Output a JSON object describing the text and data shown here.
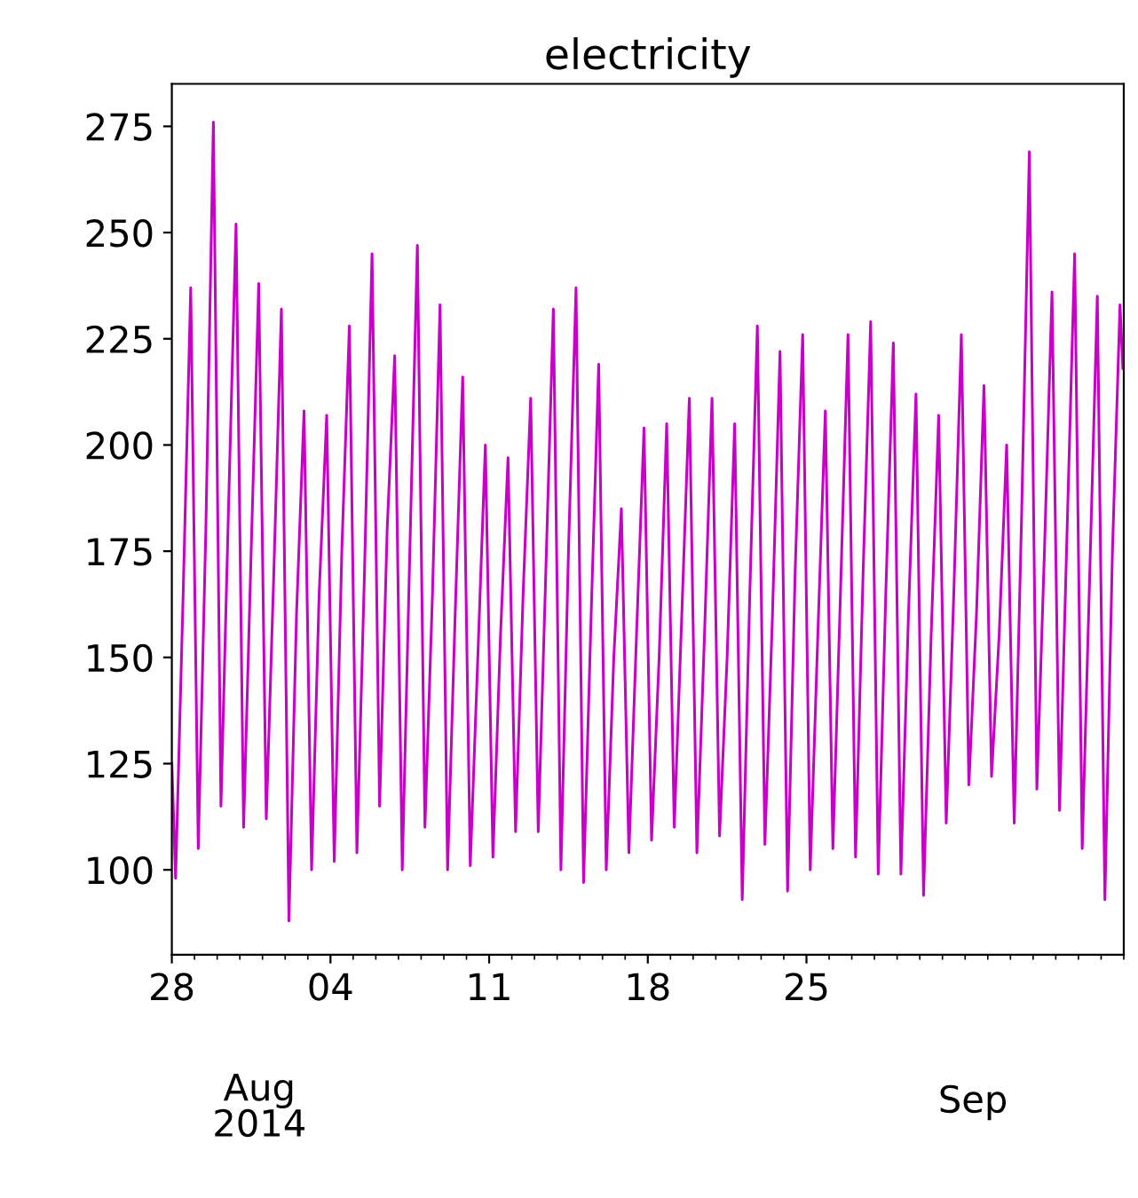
{
  "chart_data": {
    "type": "line",
    "title": "electricity",
    "x": [
      "2014-07-28T00:00",
      "2014-07-28T04:00",
      "2014-07-28T12:00",
      "2014-07-28T20:00",
      "2014-07-29T04:00",
      "2014-07-29T12:00",
      "2014-07-29T20:00",
      "2014-07-30T04:00",
      "2014-07-30T12:00",
      "2014-07-30T20:00",
      "2014-07-31T04:00",
      "2014-07-31T12:00",
      "2014-07-31T20:00",
      "2014-08-01T04:00",
      "2014-08-01T12:00",
      "2014-08-01T20:00",
      "2014-08-02T04:00",
      "2014-08-02T12:00",
      "2014-08-02T20:00",
      "2014-08-03T04:00",
      "2014-08-03T12:00",
      "2014-08-03T20:00",
      "2014-08-04T04:00",
      "2014-08-04T12:00",
      "2014-08-04T20:00",
      "2014-08-05T04:00",
      "2014-08-05T12:00",
      "2014-08-05T20:00",
      "2014-08-06T04:00",
      "2014-08-06T12:00",
      "2014-08-06T20:00",
      "2014-08-07T04:00",
      "2014-08-07T12:00",
      "2014-08-07T20:00",
      "2014-08-08T04:00",
      "2014-08-08T12:00",
      "2014-08-08T20:00",
      "2014-08-09T04:00",
      "2014-08-09T12:00",
      "2014-08-09T20:00",
      "2014-08-10T04:00",
      "2014-08-10T12:00",
      "2014-08-10T20:00",
      "2014-08-11T04:00",
      "2014-08-11T12:00",
      "2014-08-11T20:00",
      "2014-08-12T04:00",
      "2014-08-12T12:00",
      "2014-08-12T20:00",
      "2014-08-13T04:00",
      "2014-08-13T12:00",
      "2014-08-13T20:00",
      "2014-08-14T04:00",
      "2014-08-14T12:00",
      "2014-08-14T20:00",
      "2014-08-15T04:00",
      "2014-08-15T12:00",
      "2014-08-15T20:00",
      "2014-08-16T04:00",
      "2014-08-16T12:00",
      "2014-08-16T20:00",
      "2014-08-17T04:00",
      "2014-08-17T12:00",
      "2014-08-17T20:00",
      "2014-08-18T04:00",
      "2014-08-18T12:00",
      "2014-08-18T20:00",
      "2014-08-19T04:00",
      "2014-08-19T12:00",
      "2014-08-19T20:00",
      "2014-08-20T04:00",
      "2014-08-20T12:00",
      "2014-08-20T20:00",
      "2014-08-21T04:00",
      "2014-08-21T12:00",
      "2014-08-21T20:00",
      "2014-08-22T04:00",
      "2014-08-22T12:00",
      "2014-08-22T20:00",
      "2014-08-23T04:00",
      "2014-08-23T12:00",
      "2014-08-23T20:00",
      "2014-08-24T04:00",
      "2014-08-24T12:00",
      "2014-08-24T20:00",
      "2014-08-25T04:00",
      "2014-08-25T12:00",
      "2014-08-25T20:00",
      "2014-08-26T04:00",
      "2014-08-26T12:00",
      "2014-08-26T20:00",
      "2014-08-27T04:00",
      "2014-08-27T12:00",
      "2014-08-27T20:00",
      "2014-08-28T04:00",
      "2014-08-28T12:00",
      "2014-08-28T20:00",
      "2014-08-29T04:00",
      "2014-08-29T12:00",
      "2014-08-29T20:00",
      "2014-08-30T04:00",
      "2014-08-30T12:00",
      "2014-08-30T20:00",
      "2014-08-31T04:00",
      "2014-08-31T12:00",
      "2014-08-31T20:00",
      "2014-09-01T04:00",
      "2014-09-01T12:00",
      "2014-09-01T20:00",
      "2014-09-02T04:00",
      "2014-09-02T12:00",
      "2014-09-02T20:00",
      "2014-09-03T04:00",
      "2014-09-03T12:00",
      "2014-09-03T20:00",
      "2014-09-04T04:00",
      "2014-09-04T12:00",
      "2014-09-04T20:00",
      "2014-09-05T04:00",
      "2014-09-05T12:00",
      "2014-09-05T20:00",
      "2014-09-06T04:00",
      "2014-09-06T12:00",
      "2014-09-06T20:00",
      "2014-09-07T04:00",
      "2014-09-07T12:00",
      "2014-09-07T20:00",
      "2014-09-07T23:00"
    ],
    "series": [
      {
        "color": "#c800c8",
        "values": [
          125,
          98,
          165,
          237,
          105,
          180,
          276,
          115,
          185,
          252,
          110,
          175,
          238,
          112,
          170,
          232,
          88,
          160,
          208,
          100,
          165,
          207,
          102,
          175,
          228,
          104,
          170,
          245,
          115,
          180,
          221,
          100,
          175,
          247,
          110,
          165,
          233,
          100,
          160,
          216,
          101,
          150,
          200,
          103,
          155,
          197,
          109,
          165,
          211,
          109,
          170,
          232,
          100,
          175,
          237,
          97,
          160,
          219,
          100,
          150,
          185,
          104,
          155,
          204,
          107,
          150,
          205,
          110,
          160,
          211,
          104,
          155,
          211,
          108,
          150,
          205,
          93,
          165,
          228,
          106,
          160,
          222,
          95,
          170,
          226,
          100,
          155,
          208,
          105,
          165,
          226,
          103,
          170,
          229,
          99,
          165,
          224,
          99,
          160,
          212,
          94,
          155,
          207,
          111,
          165,
          226,
          120,
          160,
          214,
          122,
          155,
          200,
          111,
          185,
          269,
          119,
          175,
          236,
          114,
          180,
          245,
          105,
          170,
          235,
          93,
          175,
          233,
          218
        ]
      }
    ],
    "xlim": [
      "2014-07-28",
      "2014-09-08"
    ],
    "xticks": [
      {
        "value": "2014-07-28",
        "label": "28"
      },
      {
        "value": "2014-08-04",
        "label": "04"
      },
      {
        "value": "2014-08-11",
        "label": "11"
      },
      {
        "value": "2014-08-18",
        "label": "18"
      },
      {
        "value": "2014-08-25",
        "label": "25"
      }
    ],
    "ylim": [
      80,
      285
    ],
    "yticks": [
      100,
      125,
      150,
      175,
      200,
      225,
      250,
      275
    ],
    "grid": false,
    "legend": false,
    "marker": "none",
    "line_style": "solid",
    "annotations": [
      "Aug\n2014",
      "Sep"
    ]
  }
}
